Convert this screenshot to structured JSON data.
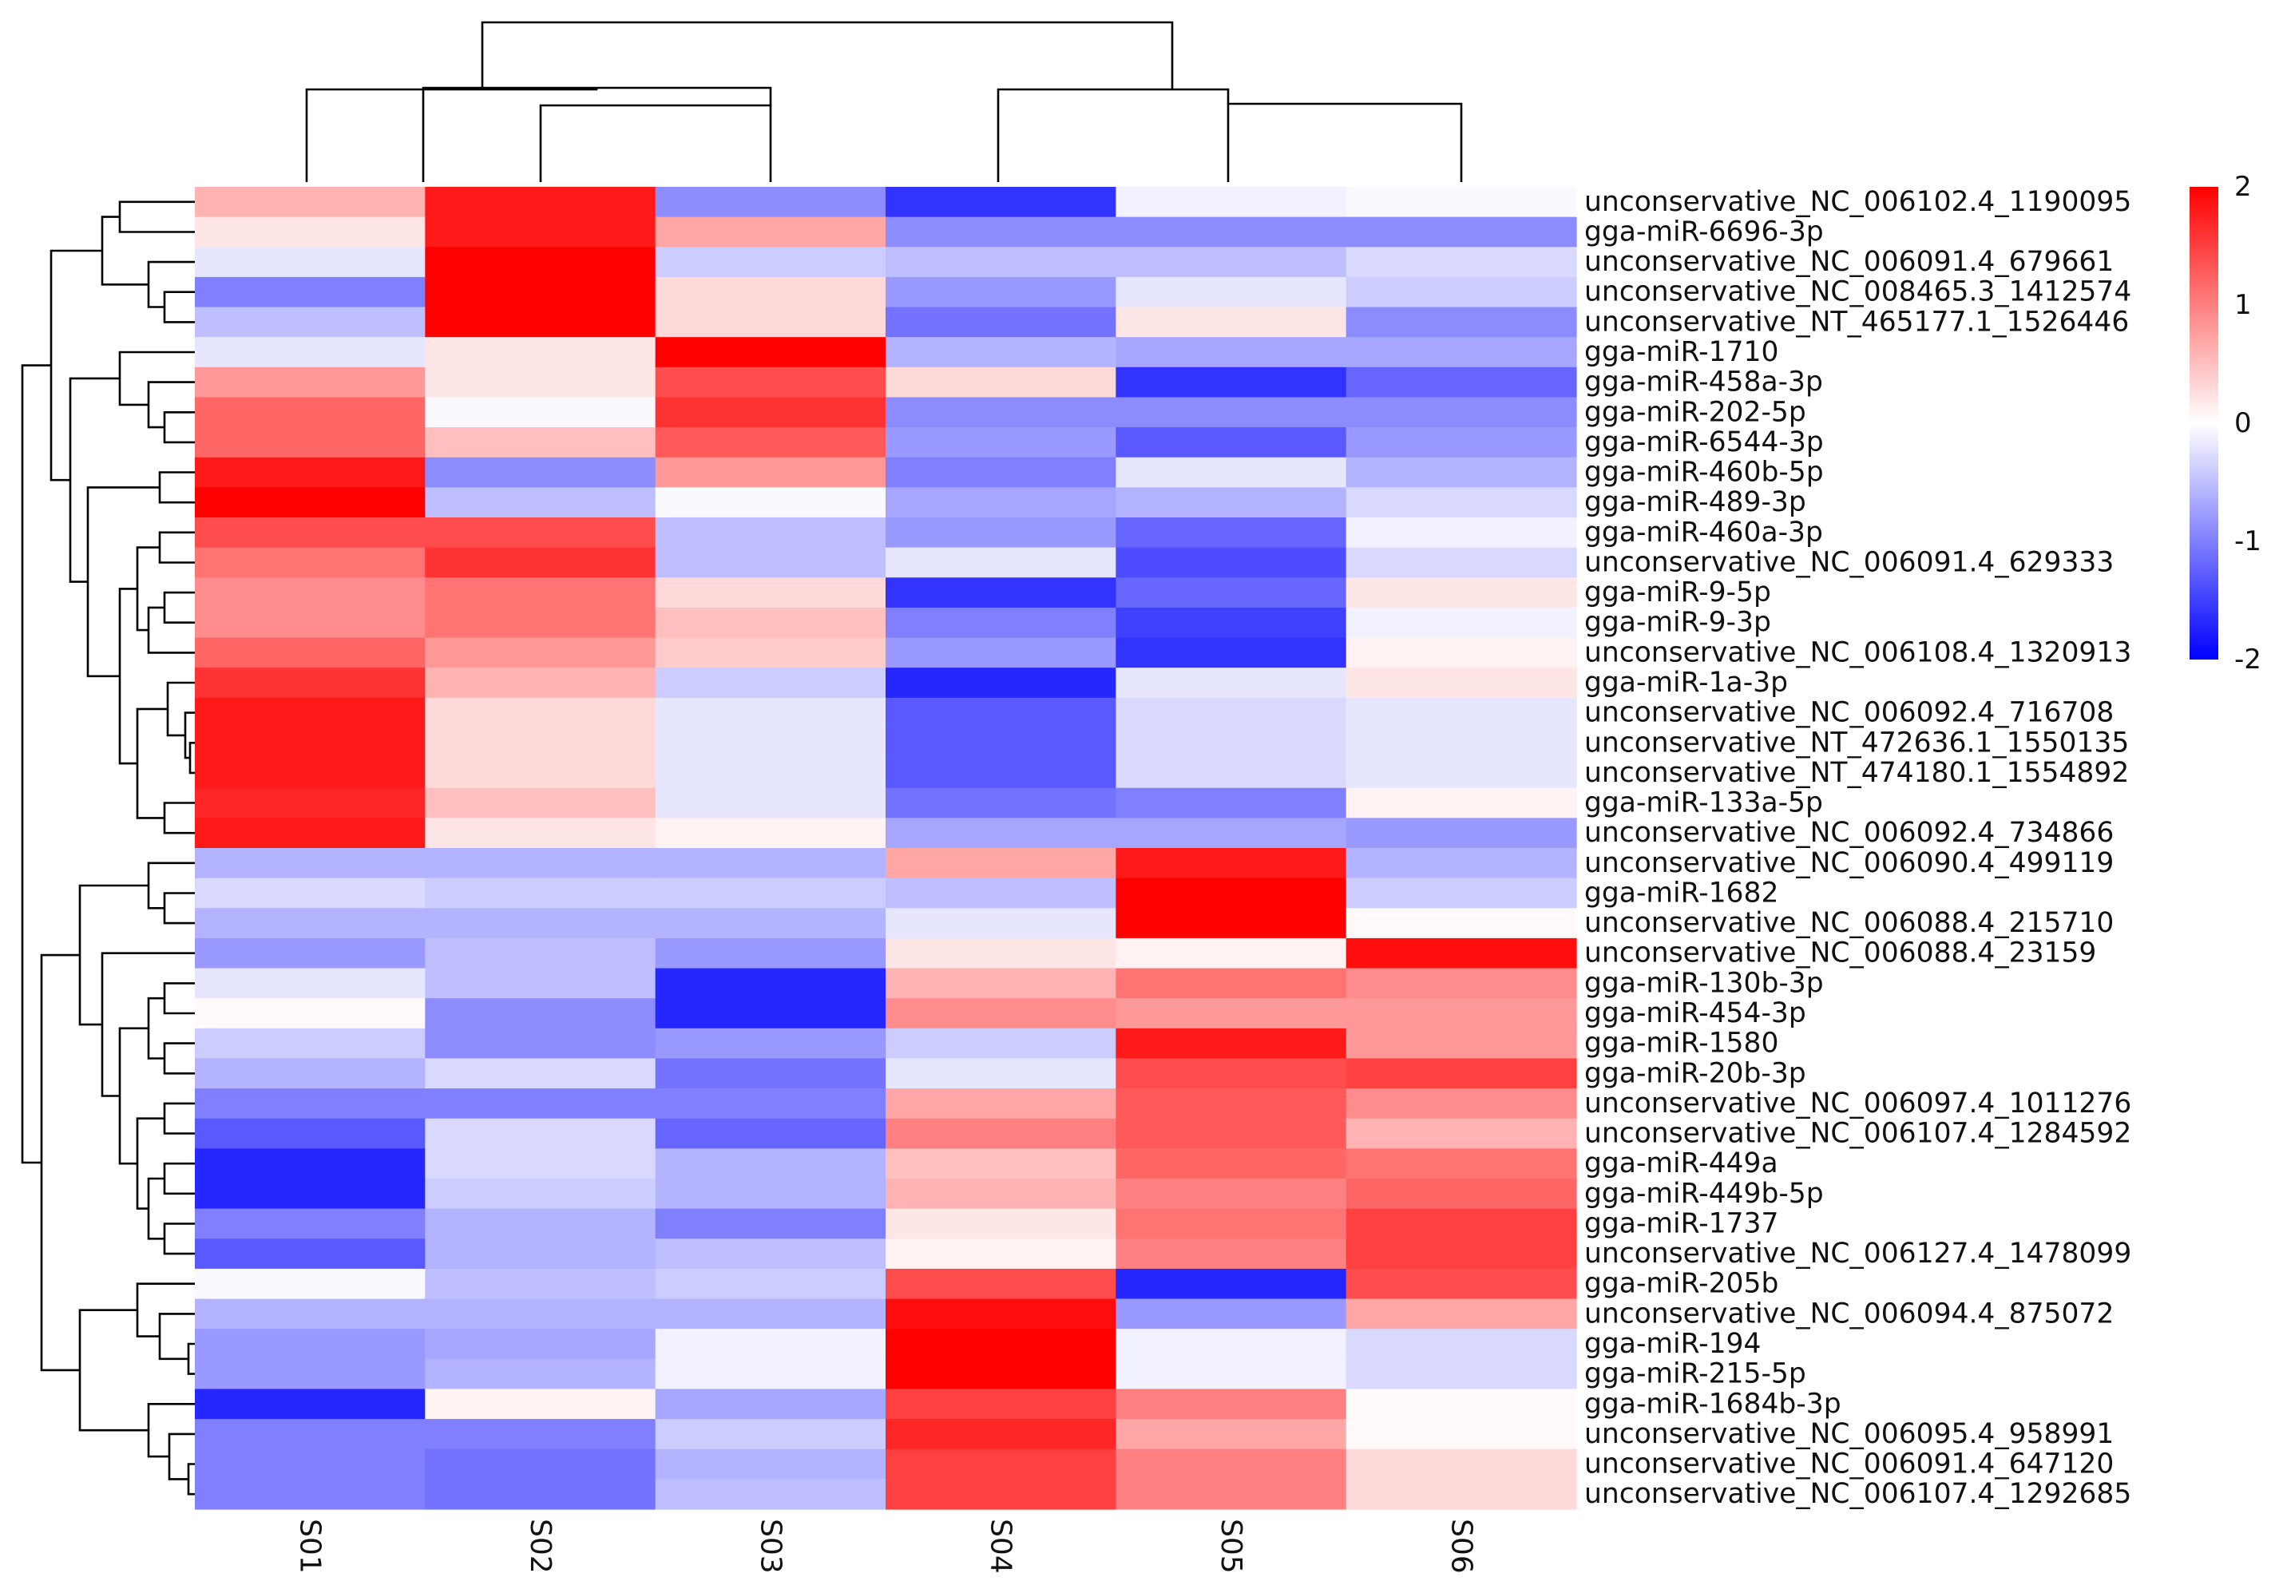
{
  "chart_data": {
    "type": "heatmap",
    "columns": [
      "S01",
      "S02",
      "S03",
      "S04",
      "S05",
      "S06"
    ],
    "rows": [
      "unconservative_NC_006102.4_1190095",
      "gga-miR-6696-3p",
      "unconservative_NC_006091.4_679661",
      "unconservative_NC_008465.3_1412574",
      "unconservative_NT_465177.1_1526446",
      "gga-miR-1710",
      "gga-miR-458a-3p",
      "gga-miR-202-5p",
      "gga-miR-6544-3p",
      "gga-miR-460b-5p",
      "gga-miR-489-3p",
      "gga-miR-460a-3p",
      "unconservative_NC_006091.4_629333",
      "gga-miR-9-5p",
      "gga-miR-9-3p",
      "unconservative_NC_006108.4_1320913",
      "gga-miR-1a-3p",
      "unconservative_NC_006092.4_716708",
      "unconservative_NT_472636.1_1550135",
      "unconservative_NT_474180.1_1554892",
      "gga-miR-133a-5p",
      "unconservative_NC_006092.4_734866",
      "unconservative_NC_006090.4_499119",
      "gga-miR-1682",
      "unconservative_NC_006088.4_215710",
      "unconservative_NC_006088.4_23159",
      "gga-miR-130b-3p",
      "gga-miR-454-3p",
      "gga-miR-1580",
      "gga-miR-20b-3p",
      "unconservative_NC_006097.4_1011276",
      "unconservative_NC_006107.4_1284592",
      "gga-miR-449a",
      "gga-miR-449b-5p",
      "gga-miR-1737",
      "unconservative_NC_006127.4_1478099",
      "gga-miR-205b",
      "unconservative_NC_006094.4_875072",
      "gga-miR-194",
      "gga-miR-215-5p",
      "gga-miR-1684b-3p",
      "unconservative_NC_006095.4_958991",
      "unconservative_NC_006091.4_647120",
      "unconservative_NC_006107.4_1292685"
    ],
    "values": [
      [
        0.6,
        1.8,
        -0.9,
        -1.6,
        -0.1,
        -0.05
      ],
      [
        0.2,
        1.8,
        0.7,
        -0.9,
        -0.9,
        -0.9
      ],
      [
        -0.2,
        2.0,
        -0.4,
        -0.5,
        -0.5,
        -0.3
      ],
      [
        -1.0,
        2.0,
        0.3,
        -0.8,
        -0.2,
        -0.4
      ],
      [
        -0.5,
        2.0,
        0.3,
        -1.1,
        0.2,
        -0.9
      ],
      [
        -0.2,
        0.2,
        2.0,
        -0.6,
        -0.7,
        -0.7
      ],
      [
        0.8,
        0.2,
        1.4,
        0.3,
        -1.6,
        -1.2
      ],
      [
        1.2,
        -0.05,
        1.6,
        -0.9,
        -0.9,
        -0.9
      ],
      [
        1.2,
        0.5,
        1.3,
        -0.8,
        -1.3,
        -0.8
      ],
      [
        1.8,
        -0.9,
        0.8,
        -1.0,
        -0.2,
        -0.6
      ],
      [
        2.0,
        -0.5,
        -0.05,
        -0.7,
        -0.6,
        -0.3
      ],
      [
        1.4,
        1.4,
        -0.5,
        -0.8,
        -1.2,
        -0.1
      ],
      [
        1.1,
        1.6,
        -0.5,
        -0.2,
        -1.4,
        -0.3
      ],
      [
        0.9,
        1.1,
        0.3,
        -1.6,
        -1.2,
        0.2
      ],
      [
        0.9,
        1.1,
        0.5,
        -1.0,
        -1.5,
        -0.1
      ],
      [
        1.2,
        0.8,
        0.4,
        -0.8,
        -1.6,
        0.1
      ],
      [
        1.6,
        0.6,
        -0.4,
        -1.7,
        -0.2,
        0.2
      ],
      [
        1.8,
        0.3,
        -0.2,
        -1.3,
        -0.3,
        -0.2
      ],
      [
        1.8,
        0.3,
        -0.2,
        -1.3,
        -0.3,
        -0.2
      ],
      [
        1.8,
        0.3,
        -0.2,
        -1.3,
        -0.3,
        -0.2
      ],
      [
        1.7,
        0.5,
        -0.2,
        -1.1,
        -1.0,
        0.1
      ],
      [
        1.8,
        0.2,
        0.1,
        -0.7,
        -0.7,
        -0.8
      ],
      [
        -0.6,
        -0.6,
        -0.6,
        0.7,
        1.8,
        -0.6
      ],
      [
        -0.3,
        -0.4,
        -0.4,
        -0.5,
        2.0,
        -0.4
      ],
      [
        -0.6,
        -0.6,
        -0.6,
        -0.2,
        2.0,
        0.05
      ],
      [
        -0.8,
        -0.5,
        -0.8,
        0.2,
        0.1,
        1.9
      ],
      [
        -0.2,
        -0.5,
        -1.7,
        0.6,
        1.1,
        0.9
      ],
      [
        0.05,
        -0.9,
        -1.7,
        0.9,
        0.8,
        0.8
      ],
      [
        -0.4,
        -0.9,
        -0.8,
        -0.4,
        1.8,
        0.8
      ],
      [
        -0.6,
        -0.3,
        -1.1,
        -0.2,
        1.4,
        1.5
      ],
      [
        -1.0,
        -1.0,
        -1.0,
        0.7,
        1.3,
        0.9
      ],
      [
        -1.3,
        -0.3,
        -1.2,
        1.0,
        1.3,
        0.6
      ],
      [
        -1.7,
        -0.3,
        -0.6,
        0.5,
        1.2,
        1.1
      ],
      [
        -1.7,
        -0.4,
        -0.6,
        0.6,
        1.0,
        1.2
      ],
      [
        -1.0,
        -0.6,
        -1.0,
        0.2,
        1.1,
        1.5
      ],
      [
        -1.3,
        -0.6,
        -0.5,
        0.1,
        1.0,
        1.5
      ],
      [
        -0.05,
        -0.5,
        -0.4,
        1.4,
        -1.7,
        1.4
      ],
      [
        -0.6,
        -0.6,
        -0.6,
        1.9,
        -0.8,
        0.7
      ],
      [
        -0.8,
        -0.7,
        -0.1,
        2.0,
        -0.1,
        -0.3
      ],
      [
        -0.8,
        -0.6,
        -0.1,
        2.0,
        -0.1,
        -0.3
      ],
      [
        -1.7,
        0.1,
        -0.7,
        1.5,
        1.0,
        0.05
      ],
      [
        -1.0,
        -1.0,
        -0.4,
        1.7,
        0.7,
        0.05
      ],
      [
        -1.0,
        -1.1,
        -0.6,
        1.5,
        1.0,
        0.3
      ],
      [
        -1.0,
        -1.1,
        -0.5,
        1.5,
        1.0,
        0.3
      ]
    ],
    "color_scale": {
      "min": -2,
      "max": 2,
      "low": "#0000ff",
      "mid": "#ffffff",
      "high": "#ff0000"
    },
    "legend": {
      "ticks": [
        2,
        1,
        0,
        -1,
        -2
      ],
      "tick_labels": [
        "2",
        "1",
        "0",
        "-1",
        "-2"
      ],
      "position": "right"
    },
    "row_dendrogram": true,
    "column_dendrogram": true,
    "title": "",
    "xlabel": "",
    "ylabel": ""
  }
}
